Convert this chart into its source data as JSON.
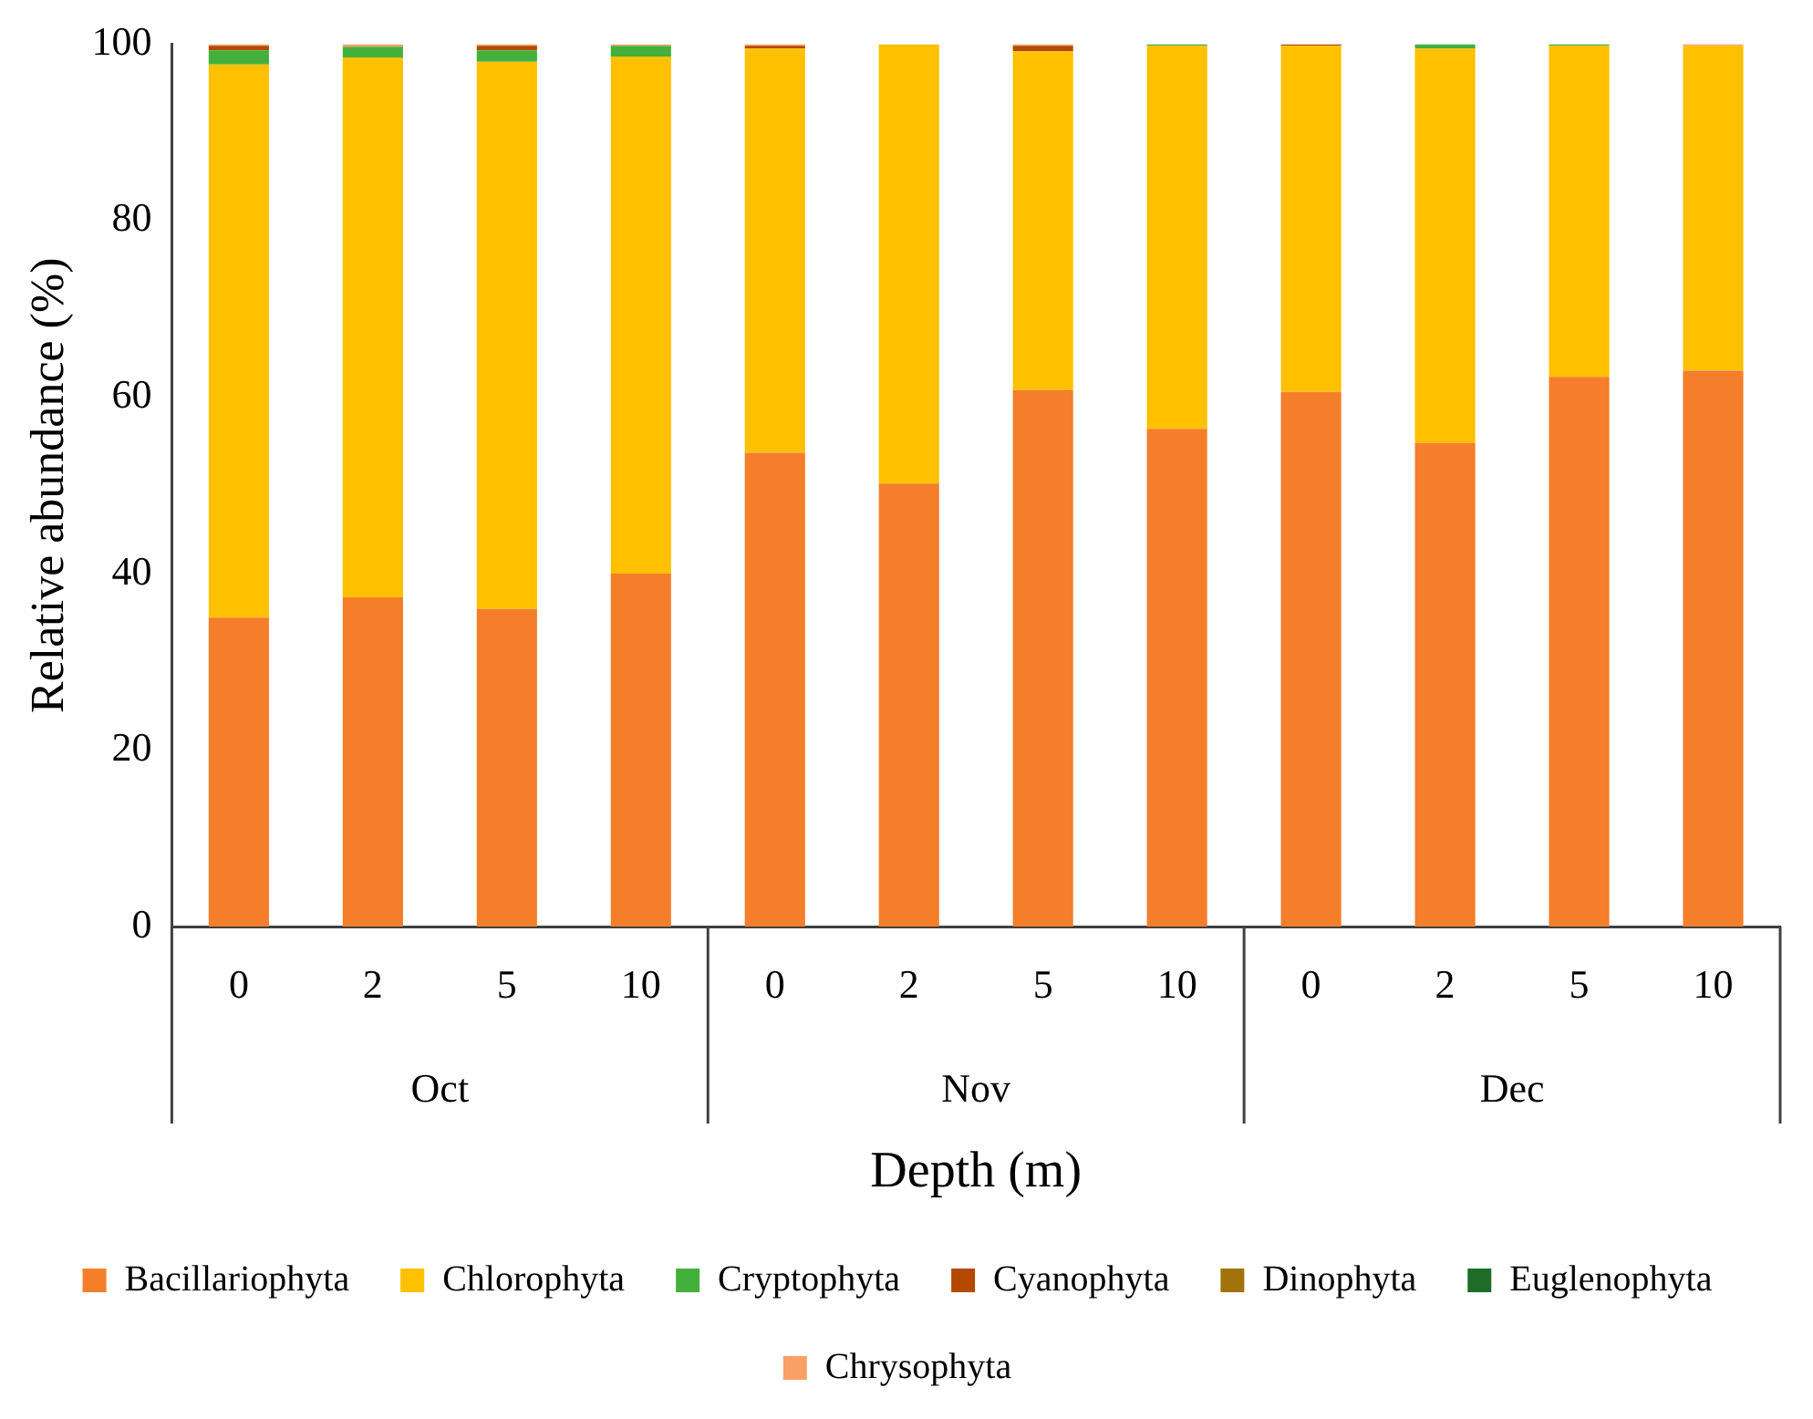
{
  "chart_data": {
    "type": "bar",
    "stacked": true,
    "xlabel": "Depth (m)",
    "ylabel": "Relative abundance (%)",
    "categories": [
      "0",
      "2",
      "5",
      "10",
      "0",
      "2",
      "5",
      "10",
      "0",
      "2",
      "5",
      "10"
    ],
    "annotations": [
      "Oct",
      "Nov",
      "Dec"
    ],
    "series": [
      {
        "name": "Bacillariophyta",
        "color": "#f47e2a",
        "values": [
          35,
          37.3,
          36,
          40,
          53.7,
          50.2,
          60.8,
          56.4,
          60.6,
          54.8,
          62.3,
          63
        ]
      },
      {
        "name": "Chlorophyta",
        "color": "#ffc000",
        "values": [
          62.7,
          61.2,
          62,
          58.6,
          45.8,
          49.8,
          38.4,
          43.4,
          39.2,
          44.7,
          37.5,
          36.8
        ]
      },
      {
        "name": "Cryptophyta",
        "color": "#43b03b",
        "values": [
          1.6,
          1.2,
          1.3,
          1.2,
          0,
          0,
          0,
          0.2,
          0,
          0.5,
          0.2,
          0
        ]
      },
      {
        "name": "Cyanophyta",
        "color": "#b34a00",
        "values": [
          0.5,
          0,
          0.5,
          0,
          0.3,
          0,
          0.6,
          0,
          0.2,
          0,
          0,
          0
        ]
      },
      {
        "name": "Dinophyta",
        "color": "#a0740a",
        "values": [
          0,
          0,
          0,
          0,
          0,
          0,
          0,
          0,
          0,
          0,
          0,
          0
        ]
      },
      {
        "name": "Euglenophyta",
        "color": "#1f6b28",
        "values": [
          0,
          0,
          0,
          0,
          0,
          0,
          0,
          0,
          0,
          0,
          0,
          0
        ]
      },
      {
        "name": "Chrysophyta",
        "color": "#f9a066",
        "values": [
          0.2,
          0.3,
          0.2,
          0.2,
          0.2,
          0,
          0.2,
          0,
          0,
          0,
          0,
          0.2
        ]
      }
    ],
    "ylim": [
      0,
      100
    ],
    "yticks": [
      0,
      20,
      40,
      60,
      80,
      100
    ],
    "grid": false,
    "legend": "bottom"
  }
}
